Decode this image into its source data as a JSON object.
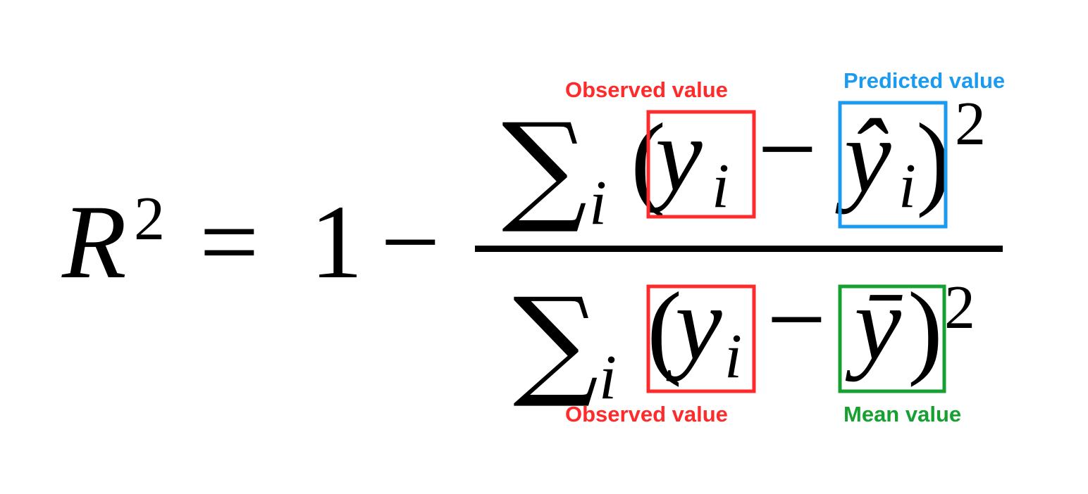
{
  "formula": {
    "lhs_symbol": "R",
    "lhs_exponent": "2",
    "equals": "=",
    "one": "1",
    "minus": "−",
    "numerator": {
      "sum": "∑",
      "sum_index": "i",
      "open_paren": "(",
      "observed_symbol": "y",
      "observed_index": "i",
      "minus": "−",
      "predicted_symbol": "ŷ",
      "predicted_index": "i",
      "close_paren": ")",
      "exponent": "2"
    },
    "denominator": {
      "sum": "∑",
      "sum_index": "i",
      "open_paren": "(",
      "observed_symbol": "y",
      "observed_index": "i",
      "minus": "−",
      "mean_symbol": "ȳ",
      "close_paren": ")",
      "exponent": "2"
    }
  },
  "annotations": {
    "observed_top": {
      "label": "Observed value",
      "color": "#ff2a2a"
    },
    "predicted": {
      "label": "Predicted value",
      "color": "#1a9bf0"
    },
    "observed_bottom": {
      "label": "Observed value",
      "color": "#ff2a2a"
    },
    "mean": {
      "label": "Mean value",
      "color": "#16a030"
    }
  }
}
